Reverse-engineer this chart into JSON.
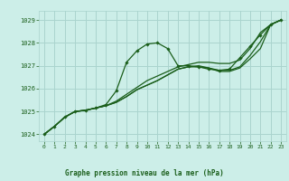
{
  "bg_color": "#cceee8",
  "grid_color": "#aad4ce",
  "line_color": "#1a5e1a",
  "marker_color": "#1a5e1a",
  "title": "Graphe pression niveau de la mer (hPa)",
  "title_color": "#1a5e1a",
  "xlim": [
    -0.5,
    23.5
  ],
  "ylim": [
    1023.7,
    1029.4
  ],
  "yticks": [
    1024,
    1025,
    1026,
    1027,
    1028,
    1029
  ],
  "xticks": [
    0,
    1,
    2,
    3,
    4,
    5,
    6,
    7,
    8,
    9,
    10,
    11,
    12,
    13,
    14,
    15,
    16,
    17,
    18,
    19,
    20,
    21,
    22,
    23
  ],
  "series1_x": [
    0,
    1,
    2,
    3,
    4,
    5,
    6,
    7,
    8,
    9,
    10,
    11,
    12,
    13,
    14,
    15,
    16,
    17,
    18,
    19,
    20,
    21,
    22,
    23
  ],
  "series1_y": [
    1024.0,
    1024.35,
    1024.75,
    1025.0,
    1025.05,
    1025.15,
    1025.3,
    1025.9,
    1027.15,
    1027.65,
    1027.95,
    1028.0,
    1027.75,
    1027.0,
    1027.0,
    1026.95,
    1026.85,
    1026.8,
    1026.85,
    1027.35,
    1027.85,
    1028.35,
    1028.8,
    1029.0
  ],
  "series2_x": [
    0,
    1,
    2,
    3,
    4,
    5,
    6,
    7,
    8,
    9,
    10,
    11,
    12,
    13,
    14,
    15,
    16,
    17,
    18,
    19,
    20,
    21,
    22,
    23
  ],
  "series2_y": [
    1024.0,
    1024.35,
    1024.75,
    1025.0,
    1025.05,
    1025.15,
    1025.25,
    1025.45,
    1025.75,
    1026.05,
    1026.35,
    1026.55,
    1026.75,
    1026.95,
    1027.05,
    1027.15,
    1027.15,
    1027.1,
    1027.1,
    1027.25,
    1027.75,
    1028.45,
    1028.8,
    1029.0
  ],
  "series3_x": [
    0,
    1,
    2,
    3,
    4,
    5,
    6,
    7,
    8,
    9,
    10,
    11,
    12,
    13,
    14,
    15,
    16,
    17,
    18,
    19,
    20,
    21,
    22,
    23
  ],
  "series3_y": [
    1024.0,
    1024.35,
    1024.75,
    1025.0,
    1025.05,
    1025.15,
    1025.25,
    1025.4,
    1025.65,
    1025.95,
    1026.15,
    1026.35,
    1026.6,
    1026.85,
    1026.95,
    1027.0,
    1026.9,
    1026.8,
    1026.8,
    1026.95,
    1027.45,
    1028.05,
    1028.8,
    1029.0
  ],
  "series4_x": [
    0,
    1,
    2,
    3,
    4,
    5,
    6,
    7,
    8,
    9,
    10,
    11,
    12,
    13,
    14,
    15,
    16,
    17,
    18,
    19,
    20,
    21,
    22,
    23
  ],
  "series4_y": [
    1024.0,
    1024.35,
    1024.75,
    1025.0,
    1025.05,
    1025.15,
    1025.25,
    1025.4,
    1025.65,
    1025.95,
    1026.15,
    1026.35,
    1026.6,
    1026.85,
    1026.95,
    1026.95,
    1026.9,
    1026.75,
    1026.75,
    1026.9,
    1027.3,
    1027.75,
    1028.8,
    1029.0
  ]
}
